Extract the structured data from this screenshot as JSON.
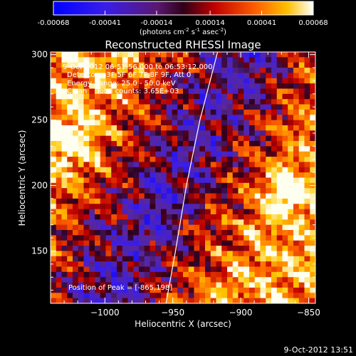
{
  "colorbar": {
    "tick_labels": [
      "-0.00068",
      "-0.00041",
      "-0.00014",
      "0.00014",
      "0.00041",
      "0.00068"
    ],
    "tick_values": [
      -0.00068,
      -0.00041,
      -0.00014,
      0.00014,
      0.00041,
      0.00068
    ],
    "range": [
      -0.00068,
      0.00068
    ],
    "units_prefix": "(photons cm",
    "units_exp1": "-2",
    "units_mid": " s",
    "units_exp2": "-1",
    "units_mid2": " asec",
    "units_exp3": "-2",
    "units_suffix": ")",
    "colors": [
      "#0000ff",
      "#5018d8",
      "#400030",
      "#ff0000",
      "#ff9000",
      "#ffffff"
    ]
  },
  "plot": {
    "title": "Reconstructed RHESSI Image",
    "annotations": [
      "9-Oct-2012 06:51:56.000 to 06:53:12.000",
      "Detectors: 3F 5F 6F 7F 8F 9F, Att 0",
      "Energy Range: 25.0 - 50.0 keV",
      "Clean    Total counts: 3.65E+03"
    ],
    "peak_label": "Position of Peak = [-865,198]",
    "footer_date": "9-Oct-2012 13:51"
  },
  "chart_data": {
    "type": "heatmap",
    "title": "Reconstructed RHESSI Image",
    "xlabel": "Heliocentric X (arcsec)",
    "ylabel": "Heliocentric Y (arcsec)",
    "xlim": [
      -1040,
      -845
    ],
    "ylim": [
      110,
      302
    ],
    "x_ticks": [
      -1000,
      -950,
      -900,
      -850
    ],
    "x_tick_labels": [
      "−1000",
      "−950",
      "−900",
      "−850"
    ],
    "y_ticks": [
      150,
      200,
      250,
      300
    ],
    "y_tick_labels": [
      "150",
      "200",
      "250",
      "300"
    ],
    "peak_position": [
      -865,
      198
    ],
    "limb_curve": [
      [
        -955,
        110
      ],
      [
        -948,
        150
      ],
      [
        -940,
        200
      ],
      [
        -930,
        250
      ],
      [
        -917,
        302
      ]
    ],
    "colorbar_range": [
      -0.00068,
      0.00068
    ],
    "grid": false
  }
}
